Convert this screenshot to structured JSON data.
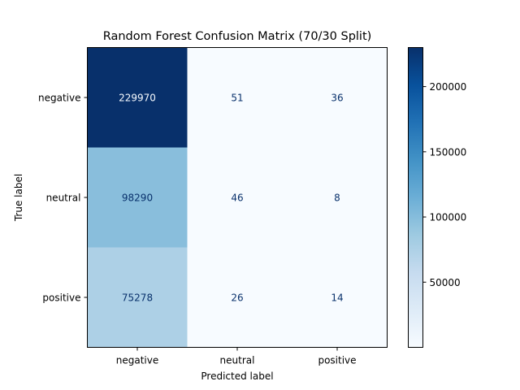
{
  "chart_data": {
    "type": "heatmap",
    "title": "Random Forest Confusion Matrix (70/30 Split)",
    "xlabel": "Predicted label",
    "ylabel": "True label",
    "x_categories": [
      "negative",
      "neutral",
      "positive"
    ],
    "y_categories": [
      "negative",
      "neutral",
      "positive"
    ],
    "values": [
      [
        229970,
        51,
        36
      ],
      [
        98290,
        46,
        8
      ],
      [
        75278,
        26,
        14
      ]
    ],
    "colormap": "Blues",
    "color_range": [
      8,
      229970
    ],
    "colorbar_ticks": [
      50000,
      100000,
      150000,
      200000
    ],
    "grid": false
  },
  "colors": {
    "low": "#f7fbff",
    "high": "#08306b",
    "text_dark_cell": "#08306b",
    "text_light_cell": "#f7fbff",
    "axes": "#000000"
  }
}
